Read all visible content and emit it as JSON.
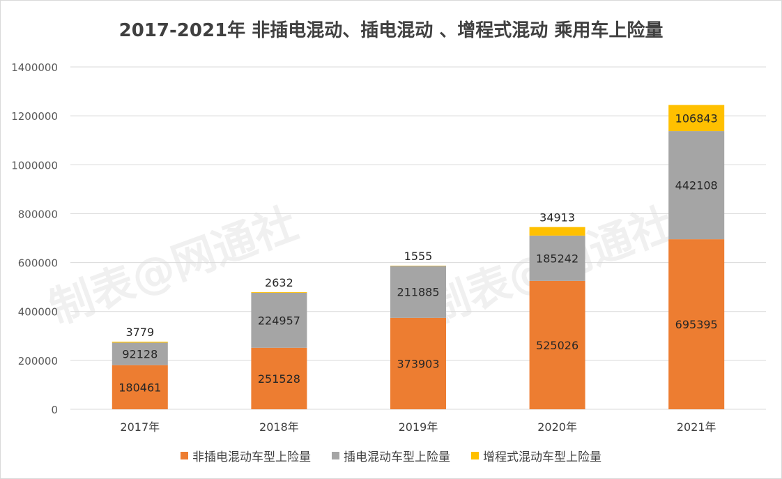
{
  "chart_data": {
    "type": "bar",
    "stacked": true,
    "title": "2017-2021年 非插电混动、插电混动 、增程式混动 乘用车上险量",
    "categories": [
      "2017年",
      "2018年",
      "2019年",
      "2020年",
      "2021年"
    ],
    "series": [
      {
        "name": "非插电混动车型上险量",
        "color": "#ED7D31",
        "values": [
          180461,
          251528,
          373903,
          525026,
          695395
        ]
      },
      {
        "name": "插电混动车型上险量",
        "color": "#A5A5A5",
        "values": [
          92128,
          224957,
          211885,
          185242,
          442108
        ]
      },
      {
        "name": "增程式混动车型上险量",
        "color": "#FFC000",
        "values": [
          3779,
          2632,
          1555,
          34913,
          106843
        ]
      }
    ],
    "ylim": [
      0,
      1400000
    ],
    "yticks": [
      "0",
      "200000",
      "400000",
      "600000",
      "800000",
      "1000000",
      "1200000",
      "1400000"
    ],
    "grid": true,
    "legend_position": "bottom"
  },
  "watermark": "制表@网通社"
}
